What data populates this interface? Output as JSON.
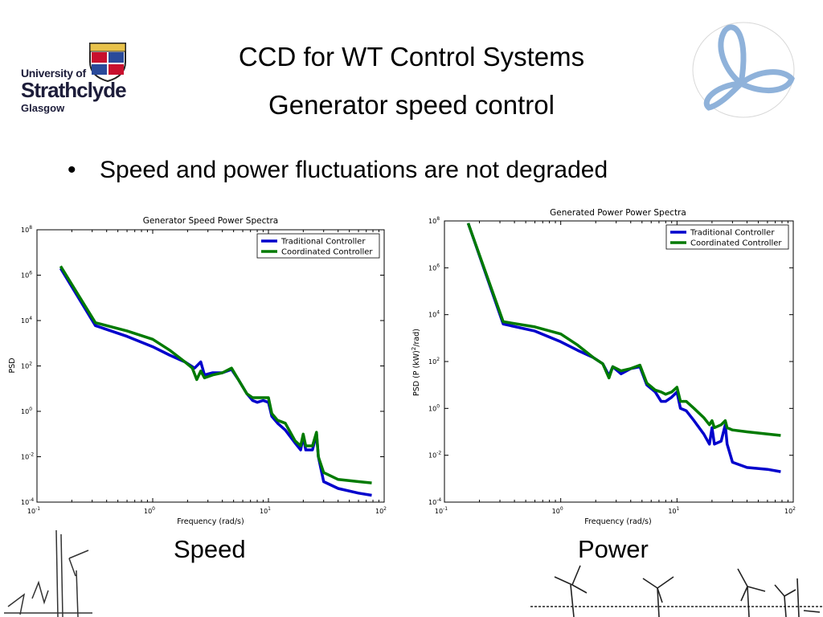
{
  "header": {
    "title_line1": "CCD for WT Control Systems",
    "title_line2": "Generator speed control"
  },
  "logo": {
    "line1": "University of",
    "line2": "Strathclyde",
    "line3": "Glasgow",
    "icon": "university-crest-icon"
  },
  "emblem": {
    "icon": "triple-loop-emblem-icon",
    "color": "#7fa7d4"
  },
  "bullet": {
    "text": "Speed and power fluctuations are not degraded"
  },
  "captions": {
    "speed": "Speed",
    "power": "Power"
  },
  "colors": {
    "traditional": "#0000cc",
    "coordinated": "#007a00"
  },
  "chart_data": [
    {
      "type": "line",
      "title": "Generator Speed Power Spectra",
      "xlabel": "Frequency (rad/s)",
      "ylabel": "PSD",
      "xscale": "log",
      "yscale": "log",
      "xlim": [
        0.1,
        100
      ],
      "ylim": [
        0.0001,
        100000000
      ],
      "xticks": [
        {
          "base": "10",
          "exp": "-1"
        },
        {
          "base": "10",
          "exp": "0"
        },
        {
          "base": "10",
          "exp": "1"
        },
        {
          "base": "10",
          "exp": "2"
        }
      ],
      "yticks": [
        {
          "base": "10",
          "exp": "-4"
        },
        {
          "base": "10",
          "exp": "-2"
        },
        {
          "base": "10",
          "exp": "0"
        },
        {
          "base": "10",
          "exp": "2"
        },
        {
          "base": "10",
          "exp": "4"
        },
        {
          "base": "10",
          "exp": "6"
        },
        {
          "base": "10",
          "exp": "8"
        }
      ],
      "grid": false,
      "legend": "top-right",
      "series": [
        {
          "name": "Traditional Controller",
          "color": "#0000cc",
          "points": [
            [
              0.16,
              2000000
            ],
            [
              0.32,
              6000
            ],
            [
              0.6,
              2000
            ],
            [
              1.0,
              700
            ],
            [
              1.4,
              300
            ],
            [
              1.9,
              150
            ],
            [
              2.3,
              80
            ],
            [
              2.6,
              150
            ],
            [
              2.8,
              40
            ],
            [
              3.3,
              50
            ],
            [
              4.0,
              50
            ],
            [
              4.8,
              70
            ],
            [
              5.5,
              25
            ],
            [
              6.5,
              6
            ],
            [
              7.3,
              3
            ],
            [
              8.0,
              2.5
            ],
            [
              9.0,
              3
            ],
            [
              10.0,
              2.5
            ],
            [
              10.7,
              0.6
            ],
            [
              12.0,
              0.3
            ],
            [
              14.0,
              0.15
            ],
            [
              17.0,
              0.04
            ],
            [
              19.0,
              0.02
            ],
            [
              20.0,
              0.08
            ],
            [
              21.0,
              0.02
            ],
            [
              24.0,
              0.02
            ],
            [
              26.0,
              0.1
            ],
            [
              27.0,
              0.01
            ],
            [
              30.0,
              0.0008
            ],
            [
              40.0,
              0.0004
            ],
            [
              60.0,
              0.00025
            ],
            [
              78.0,
              0.0002
            ]
          ]
        },
        {
          "name": "Coordinated Controller",
          "color": "#007a00",
          "points": [
            [
              0.16,
              2500000
            ],
            [
              0.32,
              8000
            ],
            [
              0.6,
              3500
            ],
            [
              1.0,
              1500
            ],
            [
              1.4,
              500
            ],
            [
              1.9,
              150
            ],
            [
              2.2,
              80
            ],
            [
              2.4,
              25
            ],
            [
              2.6,
              60
            ],
            [
              2.8,
              30
            ],
            [
              3.3,
              40
            ],
            [
              4.0,
              50
            ],
            [
              4.8,
              80
            ],
            [
              5.5,
              25
            ],
            [
              6.5,
              6
            ],
            [
              7.3,
              4
            ],
            [
              8.0,
              4
            ],
            [
              9.0,
              4
            ],
            [
              10.0,
              4
            ],
            [
              10.7,
              0.8
            ],
            [
              12.0,
              0.4
            ],
            [
              14.0,
              0.3
            ],
            [
              17.0,
              0.05
            ],
            [
              19.0,
              0.03
            ],
            [
              20.0,
              0.1
            ],
            [
              21.0,
              0.03
            ],
            [
              24.0,
              0.03
            ],
            [
              26.0,
              0.12
            ],
            [
              27.0,
              0.01
            ],
            [
              30.0,
              0.002
            ],
            [
              40.0,
              0.001
            ],
            [
              60.0,
              0.0008
            ],
            [
              78.0,
              0.0007
            ]
          ]
        }
      ]
    },
    {
      "type": "line",
      "title": "Generated Power Power Spectra",
      "xlabel": "Frequency (rad/s)",
      "ylabel": "PSD (P (kW)²/rad)",
      "xscale": "log",
      "yscale": "log",
      "xlim": [
        0.1,
        100
      ],
      "ylim": [
        0.0001,
        100000000
      ],
      "xticks": [
        {
          "base": "10",
          "exp": "-1"
        },
        {
          "base": "10",
          "exp": "0"
        },
        {
          "base": "10",
          "exp": "1"
        },
        {
          "base": "10",
          "exp": "2"
        }
      ],
      "yticks": [
        {
          "base": "10",
          "exp": "-4"
        },
        {
          "base": "10",
          "exp": "-2"
        },
        {
          "base": "10",
          "exp": "0"
        },
        {
          "base": "10",
          "exp": "2"
        },
        {
          "base": "10",
          "exp": "4"
        },
        {
          "base": "10",
          "exp": "6"
        },
        {
          "base": "10",
          "exp": "8"
        }
      ],
      "grid": false,
      "legend": "top-right",
      "series": [
        {
          "name": "Traditional Controller",
          "color": "#0000cc",
          "points": [
            [
              0.16,
              80000000
            ],
            [
              0.32,
              4000
            ],
            [
              0.6,
              2000
            ],
            [
              1.0,
              700
            ],
            [
              1.4,
              300
            ],
            [
              1.9,
              150
            ],
            [
              2.3,
              80
            ],
            [
              2.6,
              25
            ],
            [
              2.8,
              60
            ],
            [
              3.3,
              30
            ],
            [
              4.0,
              50
            ],
            [
              4.8,
              60
            ],
            [
              5.5,
              10
            ],
            [
              6.5,
              5
            ],
            [
              7.3,
              2
            ],
            [
              8.0,
              2
            ],
            [
              9.0,
              3
            ],
            [
              10.0,
              5
            ],
            [
              10.7,
              1
            ],
            [
              12.0,
              0.8
            ],
            [
              14.0,
              0.3
            ],
            [
              17.0,
              0.08
            ],
            [
              19.0,
              0.03
            ],
            [
              20.0,
              0.15
            ],
            [
              21.0,
              0.03
            ],
            [
              24.0,
              0.04
            ],
            [
              26.0,
              0.2
            ],
            [
              27.0,
              0.03
            ],
            [
              30.0,
              0.005
            ],
            [
              40.0,
              0.003
            ],
            [
              60.0,
              0.0025
            ],
            [
              78.0,
              0.002
            ]
          ]
        },
        {
          "name": "Coordinated Controller",
          "color": "#007a00",
          "points": [
            [
              0.16,
              80000000
            ],
            [
              0.32,
              5000
            ],
            [
              0.6,
              3000
            ],
            [
              1.0,
              1500
            ],
            [
              1.4,
              500
            ],
            [
              1.9,
              150
            ],
            [
              2.3,
              80
            ],
            [
              2.6,
              20
            ],
            [
              2.8,
              60
            ],
            [
              3.3,
              40
            ],
            [
              4.0,
              50
            ],
            [
              4.8,
              70
            ],
            [
              5.5,
              12
            ],
            [
              6.5,
              6
            ],
            [
              7.3,
              5
            ],
            [
              8.0,
              4
            ],
            [
              9.0,
              5
            ],
            [
              10.0,
              8
            ],
            [
              10.7,
              2
            ],
            [
              12.0,
              2
            ],
            [
              14.0,
              1
            ],
            [
              17.0,
              0.4
            ],
            [
              19.0,
              0.2
            ],
            [
              20.0,
              0.3
            ],
            [
              21.0,
              0.15
            ],
            [
              24.0,
              0.2
            ],
            [
              26.0,
              0.3
            ],
            [
              27.0,
              0.15
            ],
            [
              30.0,
              0.12
            ],
            [
              40.0,
              0.1
            ],
            [
              60.0,
              0.08
            ],
            [
              78.0,
              0.07
            ]
          ]
        }
      ]
    }
  ]
}
